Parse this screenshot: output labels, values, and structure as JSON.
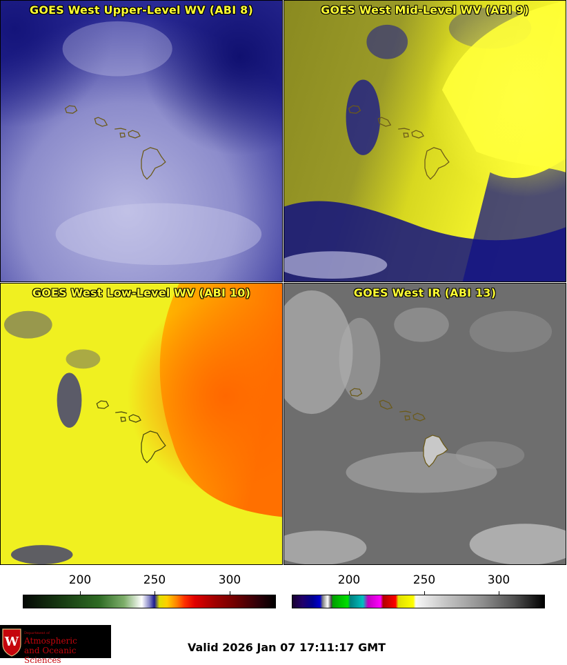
{
  "panels": [
    {
      "title": "GOES West Upper-Level WV (ABI 8)"
    },
    {
      "title": "GOES West Mid-Level WV (ABI 9)"
    },
    {
      "title": "GOES West Low-Level WV (ABI 10)"
    },
    {
      "title": "GOES West IR (ABI 13)"
    }
  ],
  "colorbars": {
    "wv_ticks": [
      "200",
      "250",
      "300"
    ],
    "ir_ticks": [
      "200",
      "250",
      "300"
    ]
  },
  "logo": {
    "dept_line": "Department of",
    "name_line1": "Atmospheric",
    "name_line2": "and Oceanic Sciences",
    "seal_letter": "W"
  },
  "valid_time": "Valid 2026 Jan 07 17:11:17 GMT",
  "colors": {
    "title_text": "#ffff33",
    "island_outline": "#6b5a1a",
    "logo_red": "#c5050c"
  }
}
